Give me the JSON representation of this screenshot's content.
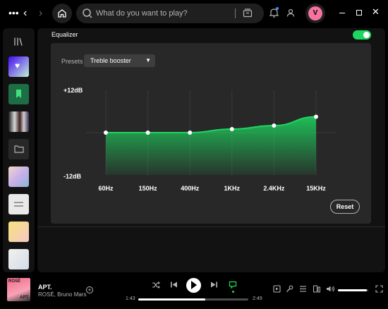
{
  "topbar": {
    "search_placeholder": "What do you want to play?",
    "avatar_initial": "V"
  },
  "equalizer": {
    "title": "Equalizer",
    "enabled": true,
    "presets_label": "Presets",
    "preset_value": "Treble booster",
    "reset_label": "Reset"
  },
  "chart_data": {
    "type": "area",
    "x": [
      "60Hz",
      "150Hz",
      "400Hz",
      "1KHz",
      "2.4KHz",
      "15KHz"
    ],
    "values": [
      0,
      0,
      0,
      1,
      2,
      4.5
    ],
    "ylim": [
      -12,
      12
    ],
    "y_tick_labels": [
      "+12dB",
      "-12dB"
    ],
    "grid": true,
    "colors": {
      "fill": "#1ed760",
      "line": "#1ed760",
      "point": "#ffffff"
    }
  },
  "player": {
    "track_title": "APT.",
    "track_artist": "ROSÉ, Bruno Mars",
    "cover_text": [
      "ROSÉ",
      "APT."
    ],
    "elapsed": "1:43",
    "duration": "2:49",
    "progress_fraction": 0.61,
    "volume_fraction": 0.95,
    "accent": "#1ed760"
  }
}
